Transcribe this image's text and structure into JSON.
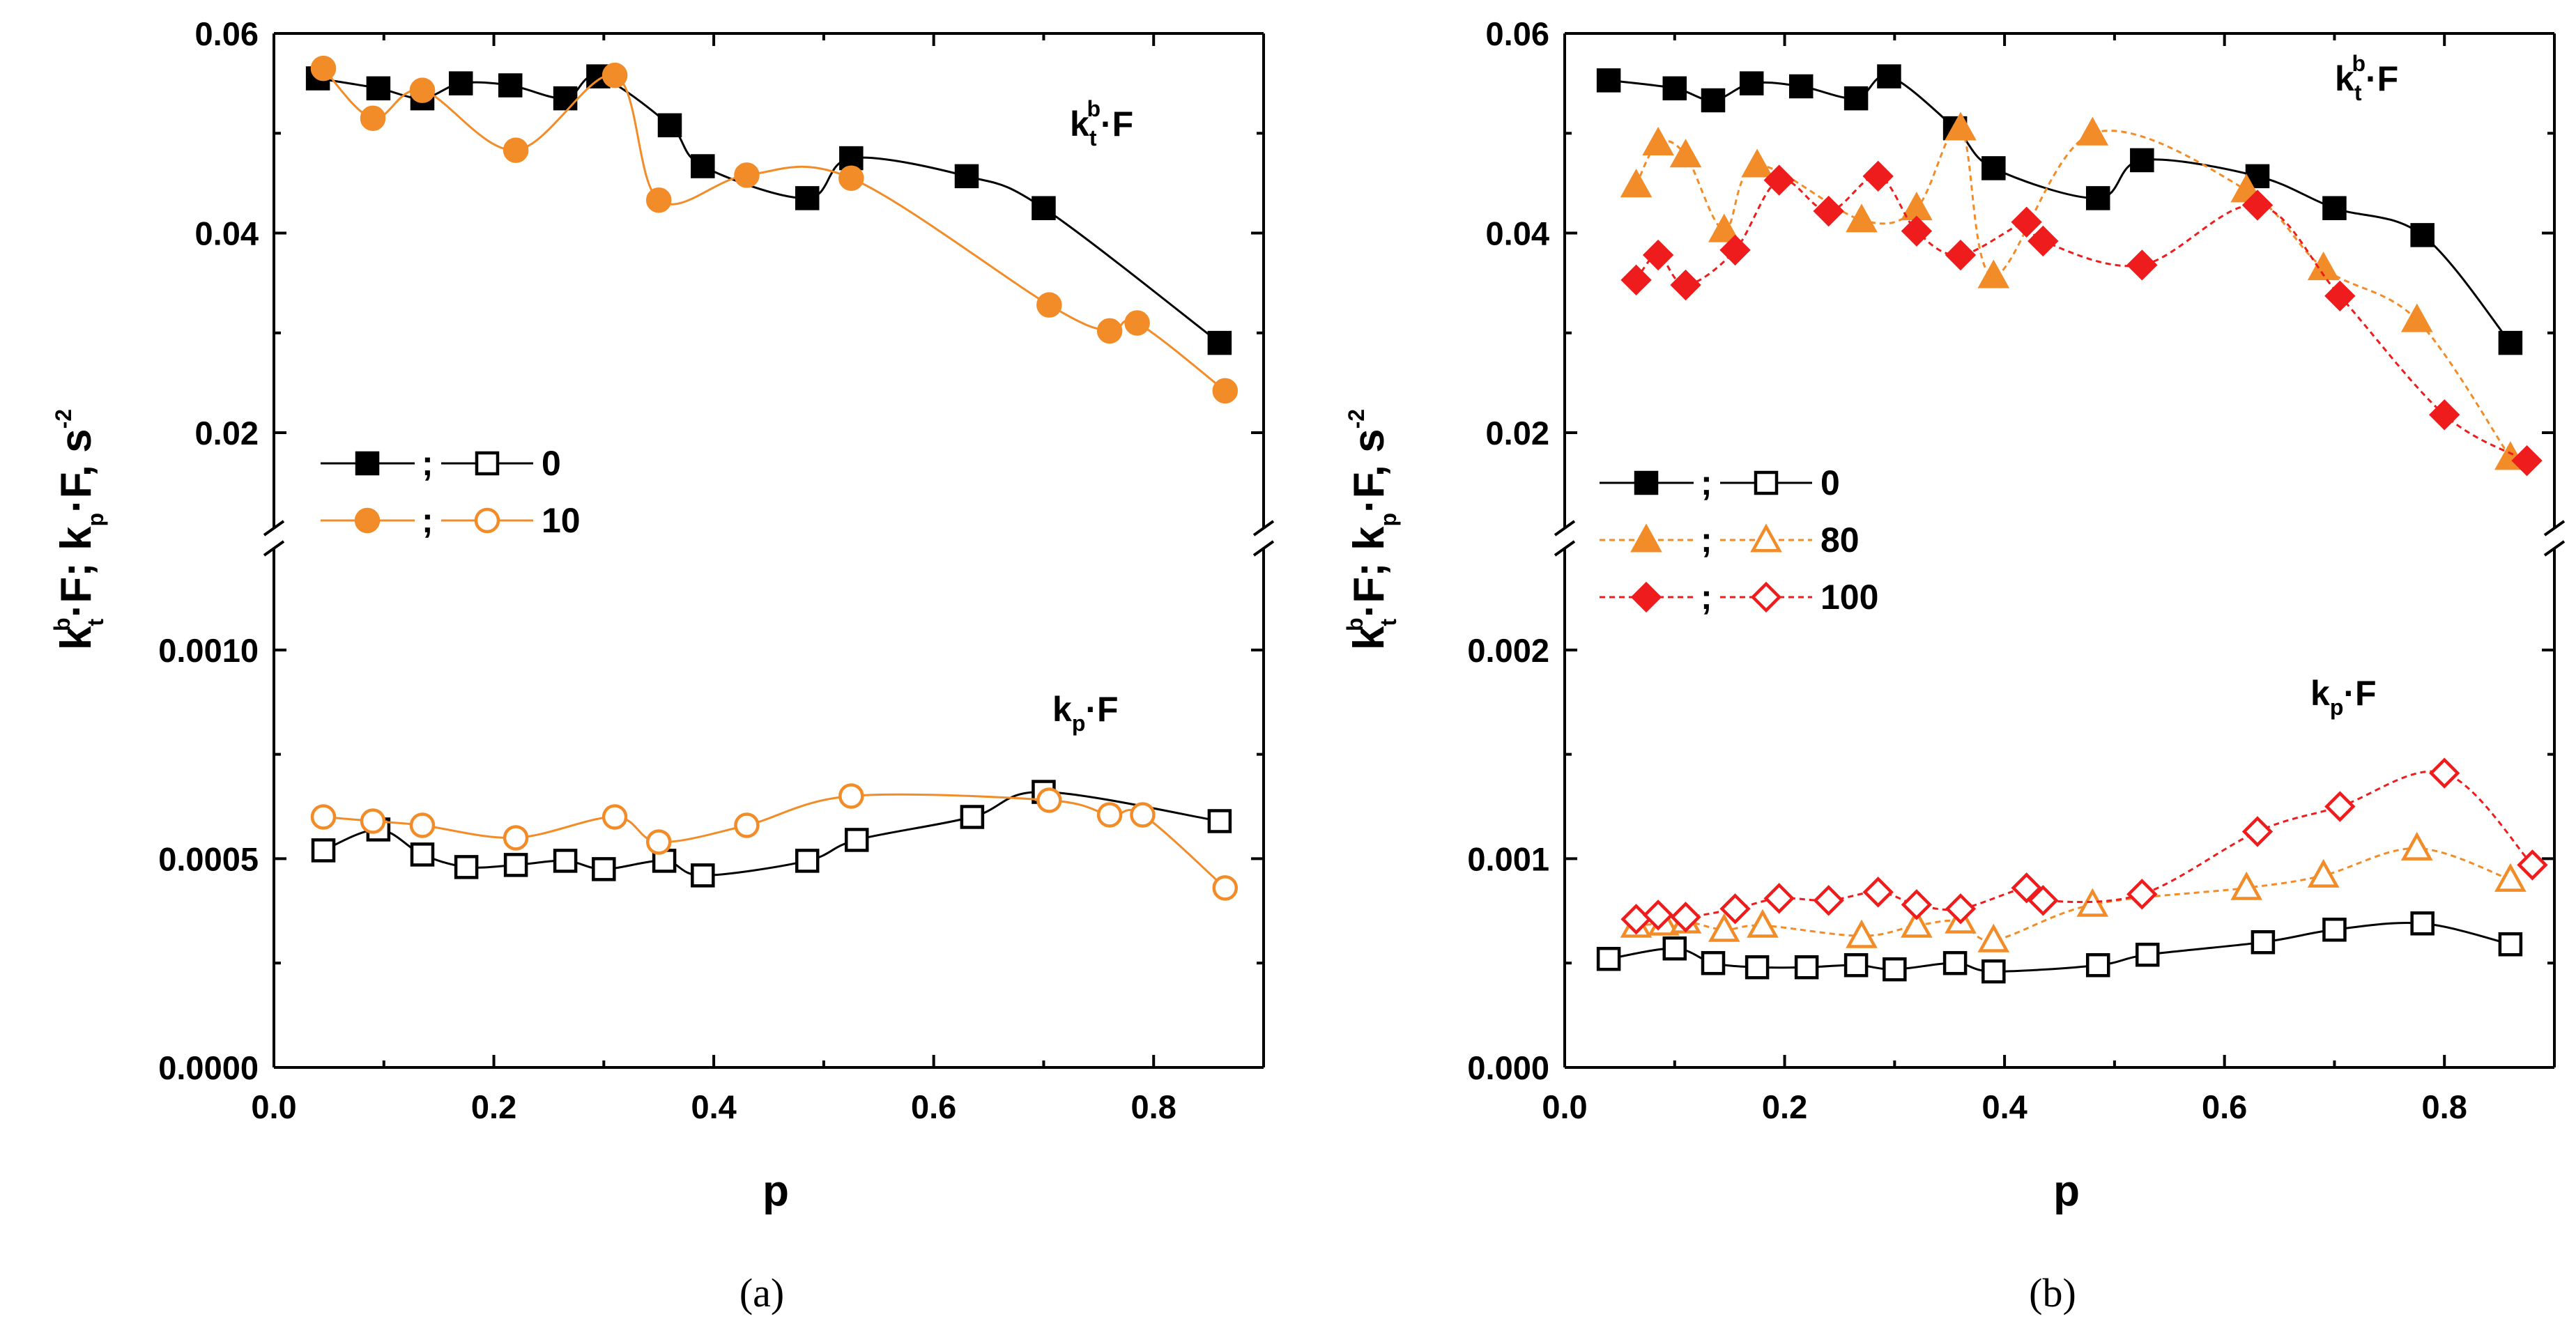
{
  "chart_data": [
    {
      "id": "a",
      "type": "scatter",
      "caption": "(a)",
      "xlabel": "p",
      "ylabel_parts": [
        "k",
        "t",
        "b",
        "·F; k",
        "p",
        "·F, s",
        "-2"
      ],
      "xlim": [
        0.0,
        0.9
      ],
      "xticks": [
        "0.0",
        "0.2",
        "0.4",
        "0.6",
        "0.8"
      ],
      "upper_ylim": [
        0.011,
        0.06
      ],
      "upper_yticks": [
        "0.02",
        "0.04",
        "0.06"
      ],
      "lower_ylim": [
        0.0,
        0.00123
      ],
      "lower_yticks": [
        "0.0000",
        "0.0005",
        "0.0010"
      ],
      "annotations": {
        "kt": [
          "k",
          "t",
          "b",
          "·F"
        ],
        "kp": [
          "k",
          "p",
          "·F"
        ]
      },
      "legend": {
        "separator": ";",
        "entries": [
          {
            "label": "0",
            "color": "#000000",
            "marker": "square",
            "dash": false
          },
          {
            "label": "10",
            "color": "#F28C28",
            "marker": "circle",
            "dash": false
          }
        ]
      },
      "series": [
        {
          "name": "0",
          "panel": "upper",
          "marker": "square",
          "filled": true,
          "color": "#000000",
          "dash": false,
          "x": [
            0.04,
            0.095,
            0.135,
            0.17,
            0.215,
            0.265,
            0.295,
            0.36,
            0.39,
            0.485,
            0.525,
            0.63,
            0.7,
            0.86
          ],
          "y": [
            0.0555,
            0.0545,
            0.0535,
            0.055,
            0.0548,
            0.0535,
            0.0557,
            0.0508,
            0.0467,
            0.0435,
            0.0475,
            0.0457,
            0.0425,
            0.029
          ]
        },
        {
          "name": "10",
          "panel": "upper",
          "marker": "circle",
          "filled": true,
          "color": "#F28C28",
          "dash": false,
          "x": [
            0.045,
            0.09,
            0.135,
            0.22,
            0.31,
            0.35,
            0.43,
            0.525,
            0.705,
            0.76,
            0.785,
            0.865
          ],
          "y": [
            0.0565,
            0.0515,
            0.0543,
            0.0483,
            0.0558,
            0.0433,
            0.0458,
            0.0455,
            0.0328,
            0.0302,
            0.031,
            0.0242
          ]
        },
        {
          "name": "0",
          "panel": "lower",
          "marker": "square",
          "filled": false,
          "color": "#000000",
          "dash": false,
          "x": [
            0.045,
            0.095,
            0.135,
            0.175,
            0.22,
            0.265,
            0.3,
            0.355,
            0.39,
            0.485,
            0.53,
            0.635,
            0.7,
            0.86
          ],
          "y": [
            0.00052,
            0.00057,
            0.00051,
            0.00048,
            0.000485,
            0.000495,
            0.000475,
            0.000495,
            0.00046,
            0.000495,
            0.000545,
            0.0006,
            0.00066,
            0.00059
          ]
        },
        {
          "name": "10",
          "panel": "lower",
          "marker": "circle",
          "filled": false,
          "color": "#F28C28",
          "dash": false,
          "x": [
            0.045,
            0.09,
            0.135,
            0.22,
            0.31,
            0.35,
            0.43,
            0.525,
            0.705,
            0.76,
            0.79,
            0.865
          ],
          "y": [
            0.0006,
            0.00059,
            0.00058,
            0.00055,
            0.0006,
            0.00054,
            0.00058,
            0.00065,
            0.00064,
            0.000605,
            0.000605,
            0.00043
          ]
        }
      ]
    },
    {
      "id": "b",
      "type": "scatter",
      "caption": "(b)",
      "xlabel": "p",
      "ylabel_parts": [
        "k",
        "t",
        "b",
        "·F; k",
        "p",
        "·F, s",
        "-2"
      ],
      "xlim": [
        0.0,
        0.9
      ],
      "xticks": [
        "0.0",
        "0.2",
        "0.4",
        "0.6",
        "0.8"
      ],
      "upper_ylim": [
        0.011,
        0.06
      ],
      "upper_yticks": [
        "0.02",
        "0.04",
        "0.06"
      ],
      "lower_ylim": [
        0.0,
        0.00246
      ],
      "lower_yticks": [
        "0.000",
        "0.001",
        "0.002"
      ],
      "annotations": {
        "kt": [
          "k",
          "t",
          "b",
          "·F"
        ],
        "kp": [
          "k",
          "p",
          "·F"
        ]
      },
      "legend": {
        "separator": ";",
        "entries": [
          {
            "label": "0",
            "color": "#000000",
            "marker": "square",
            "dash": false
          },
          {
            "label": "80",
            "color": "#F28C28",
            "marker": "triangle",
            "dash": true
          },
          {
            "label": "100",
            "color": "#EE1C1C",
            "marker": "diamond",
            "dash": true
          }
        ]
      },
      "series": [
        {
          "name": "0",
          "panel": "upper",
          "marker": "square",
          "filled": true,
          "color": "#000000",
          "dash": false,
          "x": [
            0.04,
            0.1,
            0.135,
            0.17,
            0.215,
            0.265,
            0.295,
            0.355,
            0.39,
            0.485,
            0.525,
            0.63,
            0.7,
            0.78,
            0.86
          ],
          "y": [
            0.0553,
            0.0545,
            0.0533,
            0.055,
            0.0547,
            0.0535,
            0.0557,
            0.0505,
            0.0465,
            0.0435,
            0.0473,
            0.0457,
            0.0425,
            0.0398,
            0.029
          ]
        },
        {
          "name": "80",
          "panel": "upper",
          "marker": "triangle",
          "filled": true,
          "color": "#F28C28",
          "dash": true,
          "x": [
            0.065,
            0.085,
            0.11,
            0.145,
            0.175,
            0.27,
            0.32,
            0.36,
            0.39,
            0.48,
            0.62,
            0.69,
            0.775,
            0.86
          ],
          "y": [
            0.0448,
            0.049,
            0.0478,
            0.0403,
            0.0468,
            0.0413,
            0.0425,
            0.0505,
            0.0357,
            0.05,
            0.0443,
            0.0365,
            0.0313,
            0.0175
          ]
        },
        {
          "name": "100",
          "panel": "upper",
          "marker": "diamond",
          "filled": true,
          "color": "#EE1C1C",
          "dash": true,
          "x": [
            0.065,
            0.085,
            0.11,
            0.155,
            0.195,
            0.24,
            0.285,
            0.32,
            0.36,
            0.42,
            0.435,
            0.525,
            0.63,
            0.705,
            0.8,
            0.875
          ],
          "y": [
            0.0353,
            0.0378,
            0.0348,
            0.0383,
            0.0453,
            0.0422,
            0.0457,
            0.0402,
            0.0378,
            0.0411,
            0.0392,
            0.0368,
            0.0428,
            0.0337,
            0.0218,
            0.0172
          ]
        },
        {
          "name": "0",
          "panel": "lower",
          "marker": "square",
          "filled": false,
          "color": "#000000",
          "dash": false,
          "x": [
            0.04,
            0.1,
            0.135,
            0.175,
            0.22,
            0.265,
            0.3,
            0.355,
            0.39,
            0.485,
            0.53,
            0.635,
            0.7,
            0.78,
            0.86
          ],
          "y": [
            0.00052,
            0.00057,
            0.0005,
            0.00048,
            0.00048,
            0.00049,
            0.00047,
            0.0005,
            0.00046,
            0.00049,
            0.00054,
            0.0006,
            0.00066,
            0.00069,
            0.00059
          ]
        },
        {
          "name": "80",
          "panel": "lower",
          "marker": "triangle",
          "filled": false,
          "color": "#F28C28",
          "dash": true,
          "x": [
            0.065,
            0.09,
            0.11,
            0.145,
            0.18,
            0.27,
            0.32,
            0.36,
            0.39,
            0.48,
            0.62,
            0.69,
            0.775,
            0.86
          ],
          "y": [
            0.00068,
            0.00069,
            0.0007,
            0.00066,
            0.00068,
            0.00063,
            0.00068,
            0.0007,
            0.00061,
            0.00078,
            0.00086,
            0.00092,
            0.00105,
            0.0009
          ]
        },
        {
          "name": "100",
          "panel": "lower",
          "marker": "diamond",
          "filled": false,
          "color": "#EE1C1C",
          "dash": true,
          "x": [
            0.065,
            0.085,
            0.11,
            0.155,
            0.195,
            0.24,
            0.285,
            0.32,
            0.36,
            0.42,
            0.435,
            0.525,
            0.63,
            0.705,
            0.8,
            0.88
          ],
          "y": [
            0.00071,
            0.00073,
            0.00072,
            0.00076,
            0.00081,
            0.0008,
            0.00084,
            0.00078,
            0.00076,
            0.00086,
            0.0008,
            0.00083,
            0.00113,
            0.00125,
            0.00141,
            0.00097
          ]
        }
      ]
    }
  ]
}
